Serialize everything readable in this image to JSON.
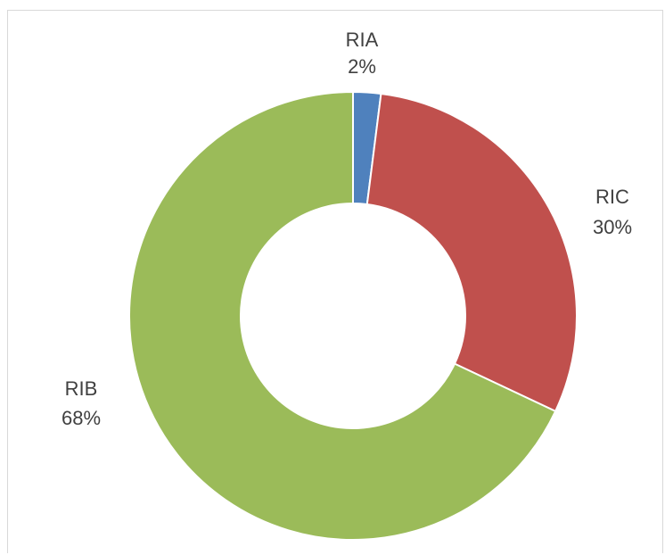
{
  "chart_data": {
    "type": "pie",
    "variant": "donut",
    "start_angle_deg": 0,
    "direction": "clockwise",
    "slices": [
      {
        "label": "RIA",
        "value": 2,
        "value_label": "2%",
        "color": "#4f81bd"
      },
      {
        "label": "RIC",
        "value": 30,
        "value_label": "30%",
        "color": "#c0504d"
      },
      {
        "label": "RIB",
        "value": 68,
        "value_label": "68%",
        "color": "#9bbb59"
      }
    ],
    "title": "",
    "legend": "none"
  }
}
